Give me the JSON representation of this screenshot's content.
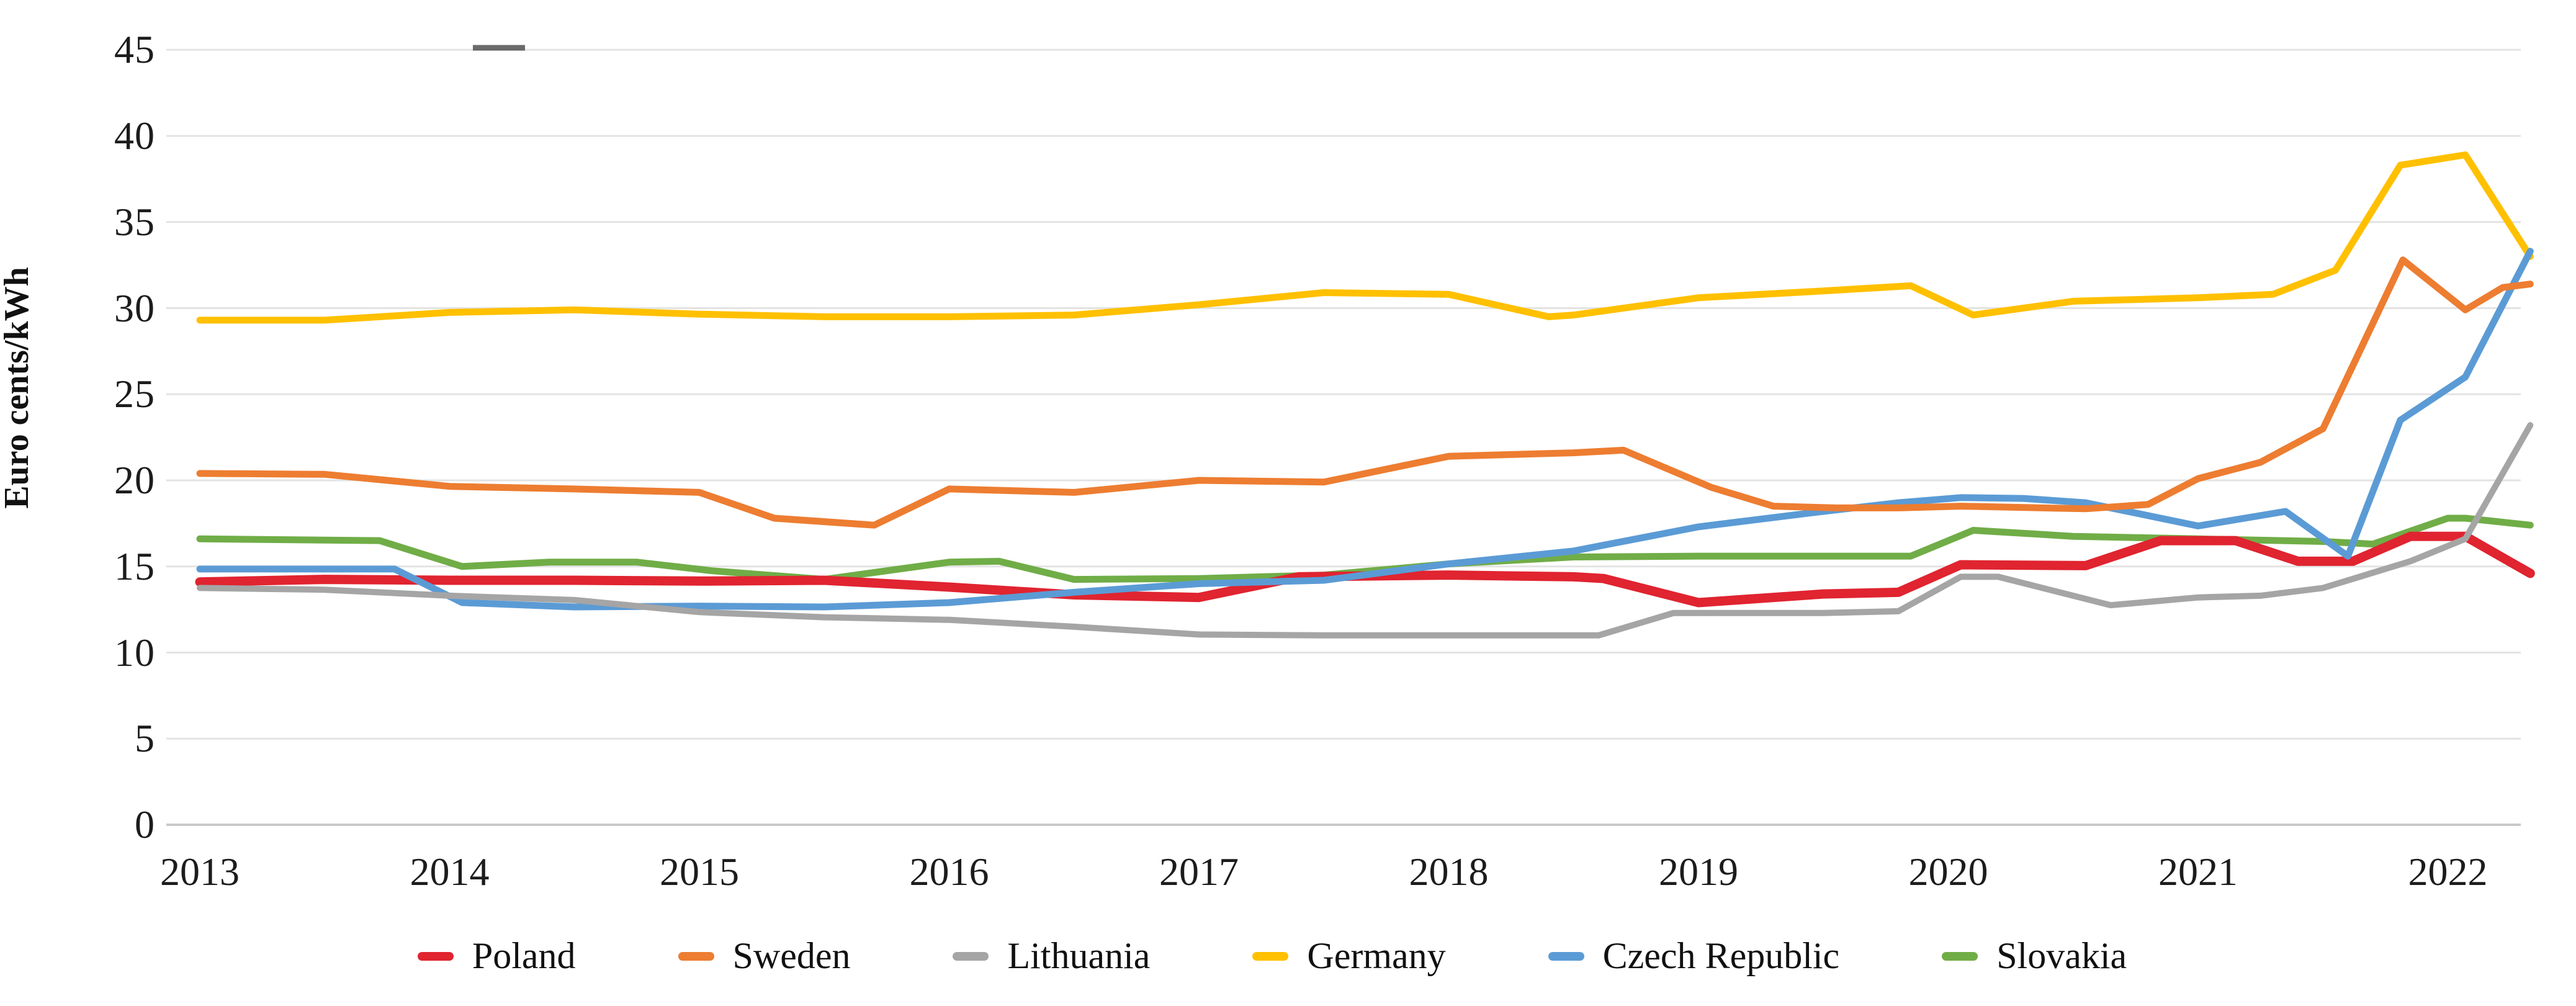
{
  "y_axis": {
    "title": "Euro cents/kWh",
    "ticks": [
      0,
      5,
      10,
      15,
      20,
      25,
      30,
      35,
      40,
      45
    ],
    "range": [
      0,
      45
    ]
  },
  "x_axis": {
    "ticks": [
      "2013",
      "2014",
      "2015",
      "2016",
      "2017",
      "2018",
      "2019",
      "2020",
      "2021",
      "2022"
    ]
  },
  "chart_data": {
    "type": "line",
    "title": "",
    "xlabel": "",
    "ylabel": "Euro cents/kWh",
    "ylim": [
      0,
      45
    ],
    "grid": true,
    "legend_position": "bottom",
    "x_unit": "year (semi-annual points)",
    "series": [
      {
        "name": "Poland",
        "color": "#e02430",
        "stroke_width": 15,
        "points": [
          [
            2013.0,
            14.1
          ],
          [
            2013.5,
            14.25
          ],
          [
            2014.0,
            14.2
          ],
          [
            2014.5,
            14.2
          ],
          [
            2015.0,
            14.15
          ],
          [
            2015.5,
            14.2
          ],
          [
            2016.0,
            13.8
          ],
          [
            2016.5,
            13.35
          ],
          [
            2017.0,
            13.2
          ],
          [
            2017.4,
            14.4
          ],
          [
            2018.0,
            14.5
          ],
          [
            2018.5,
            14.4
          ],
          [
            2018.62,
            14.3
          ],
          [
            2019.0,
            12.9
          ],
          [
            2019.5,
            13.4
          ],
          [
            2019.8,
            13.5
          ],
          [
            2020.05,
            15.1
          ],
          [
            2020.55,
            15.05
          ],
          [
            2020.85,
            16.5
          ],
          [
            2021.15,
            16.5
          ],
          [
            2021.4,
            15.3
          ],
          [
            2021.62,
            15.3
          ],
          [
            2021.85,
            16.75
          ],
          [
            2022.07,
            16.75
          ],
          [
            2022.33,
            14.6
          ]
        ]
      },
      {
        "name": "Sweden",
        "color": "#ed7d31",
        "stroke_width": 11,
        "points": [
          [
            2013.0,
            20.4
          ],
          [
            2013.5,
            20.35
          ],
          [
            2014.0,
            19.65
          ],
          [
            2014.5,
            19.5
          ],
          [
            2015.0,
            19.3
          ],
          [
            2015.3,
            17.8
          ],
          [
            2015.7,
            17.4
          ],
          [
            2016.0,
            19.5
          ],
          [
            2016.5,
            19.3
          ],
          [
            2017.0,
            20.0
          ],
          [
            2017.5,
            19.9
          ],
          [
            2018.0,
            21.4
          ],
          [
            2018.5,
            21.6
          ],
          [
            2018.7,
            21.75
          ],
          [
            2019.05,
            19.6
          ],
          [
            2019.3,
            18.5
          ],
          [
            2019.55,
            18.4
          ],
          [
            2019.8,
            18.4
          ],
          [
            2020.05,
            18.5
          ],
          [
            2020.55,
            18.35
          ],
          [
            2020.8,
            18.6
          ],
          [
            2021.0,
            20.1
          ],
          [
            2021.25,
            21.05
          ],
          [
            2021.5,
            23.0
          ],
          [
            2021.82,
            32.8
          ],
          [
            2022.07,
            29.9
          ],
          [
            2022.22,
            31.2
          ],
          [
            2022.33,
            31.4
          ]
        ]
      },
      {
        "name": "Lithuania",
        "color": "#a5a5a5",
        "stroke_width": 10,
        "points": [
          [
            2013.0,
            13.75
          ],
          [
            2013.5,
            13.65
          ],
          [
            2014.0,
            13.3
          ],
          [
            2014.5,
            13.05
          ],
          [
            2015.0,
            12.35
          ],
          [
            2015.5,
            12.05
          ],
          [
            2016.0,
            11.9
          ],
          [
            2016.5,
            11.5
          ],
          [
            2017.0,
            11.05
          ],
          [
            2017.5,
            11.0
          ],
          [
            2018.0,
            11.0
          ],
          [
            2018.6,
            11.0
          ],
          [
            2018.9,
            12.3
          ],
          [
            2019.5,
            12.3
          ],
          [
            2019.8,
            12.4
          ],
          [
            2020.05,
            14.4
          ],
          [
            2020.2,
            14.4
          ],
          [
            2020.65,
            12.75
          ],
          [
            2021.0,
            13.2
          ],
          [
            2021.25,
            13.3
          ],
          [
            2021.5,
            13.75
          ],
          [
            2021.85,
            15.3
          ],
          [
            2022.07,
            16.6
          ],
          [
            2022.33,
            23.2
          ]
        ]
      },
      {
        "name": "Germany",
        "color": "#ffc000",
        "stroke_width": 11,
        "points": [
          [
            2013.0,
            29.3
          ],
          [
            2013.5,
            29.3
          ],
          [
            2014.0,
            29.75
          ],
          [
            2014.5,
            29.9
          ],
          [
            2015.0,
            29.65
          ],
          [
            2015.5,
            29.5
          ],
          [
            2016.0,
            29.5
          ],
          [
            2016.5,
            29.6
          ],
          [
            2017.0,
            30.2
          ],
          [
            2017.5,
            30.9
          ],
          [
            2018.0,
            30.8
          ],
          [
            2018.4,
            29.5
          ],
          [
            2018.5,
            29.6
          ],
          [
            2019.0,
            30.6
          ],
          [
            2019.5,
            31.0
          ],
          [
            2019.85,
            31.3
          ],
          [
            2020.1,
            29.6
          ],
          [
            2020.5,
            30.4
          ],
          [
            2021.0,
            30.6
          ],
          [
            2021.3,
            30.8
          ],
          [
            2021.55,
            32.2
          ],
          [
            2021.81,
            38.3
          ],
          [
            2022.07,
            38.9
          ],
          [
            2022.33,
            33.0
          ]
        ]
      },
      {
        "name": "Czech Republic",
        "color": "#5b9bd5",
        "stroke_width": 11,
        "points": [
          [
            2013.0,
            14.85
          ],
          [
            2013.5,
            14.85
          ],
          [
            2013.78,
            14.85
          ],
          [
            2014.05,
            12.9
          ],
          [
            2014.5,
            12.65
          ],
          [
            2015.0,
            12.7
          ],
          [
            2015.5,
            12.65
          ],
          [
            2016.0,
            12.9
          ],
          [
            2016.5,
            13.5
          ],
          [
            2017.0,
            14.0
          ],
          [
            2017.5,
            14.2
          ],
          [
            2018.0,
            15.15
          ],
          [
            2018.5,
            15.9
          ],
          [
            2019.0,
            17.3
          ],
          [
            2019.5,
            18.2
          ],
          [
            2019.8,
            18.7
          ],
          [
            2020.05,
            19.0
          ],
          [
            2020.3,
            18.95
          ],
          [
            2020.55,
            18.7
          ],
          [
            2021.0,
            17.35
          ],
          [
            2021.35,
            18.2
          ],
          [
            2021.6,
            15.6
          ],
          [
            2021.81,
            23.5
          ],
          [
            2022.07,
            26.0
          ],
          [
            2022.33,
            33.3
          ]
        ]
      },
      {
        "name": "Slovakia",
        "color": "#70ad47",
        "stroke_width": 11,
        "points": [
          [
            2013.0,
            16.6
          ],
          [
            2013.72,
            16.5
          ],
          [
            2014.05,
            15.0
          ],
          [
            2014.4,
            15.25
          ],
          [
            2014.75,
            15.25
          ],
          [
            2015.05,
            14.75
          ],
          [
            2015.5,
            14.25
          ],
          [
            2016.0,
            15.25
          ],
          [
            2016.2,
            15.3
          ],
          [
            2016.5,
            14.25
          ],
          [
            2017.0,
            14.3
          ],
          [
            2017.5,
            14.5
          ],
          [
            2018.0,
            15.15
          ],
          [
            2018.5,
            15.55
          ],
          [
            2019.0,
            15.6
          ],
          [
            2019.85,
            15.6
          ],
          [
            2020.1,
            17.1
          ],
          [
            2020.5,
            16.75
          ],
          [
            2021.0,
            16.6
          ],
          [
            2021.5,
            16.45
          ],
          [
            2021.7,
            16.3
          ],
          [
            2022.0,
            17.8
          ],
          [
            2022.07,
            17.8
          ],
          [
            2022.33,
            17.4
          ]
        ]
      }
    ]
  }
}
